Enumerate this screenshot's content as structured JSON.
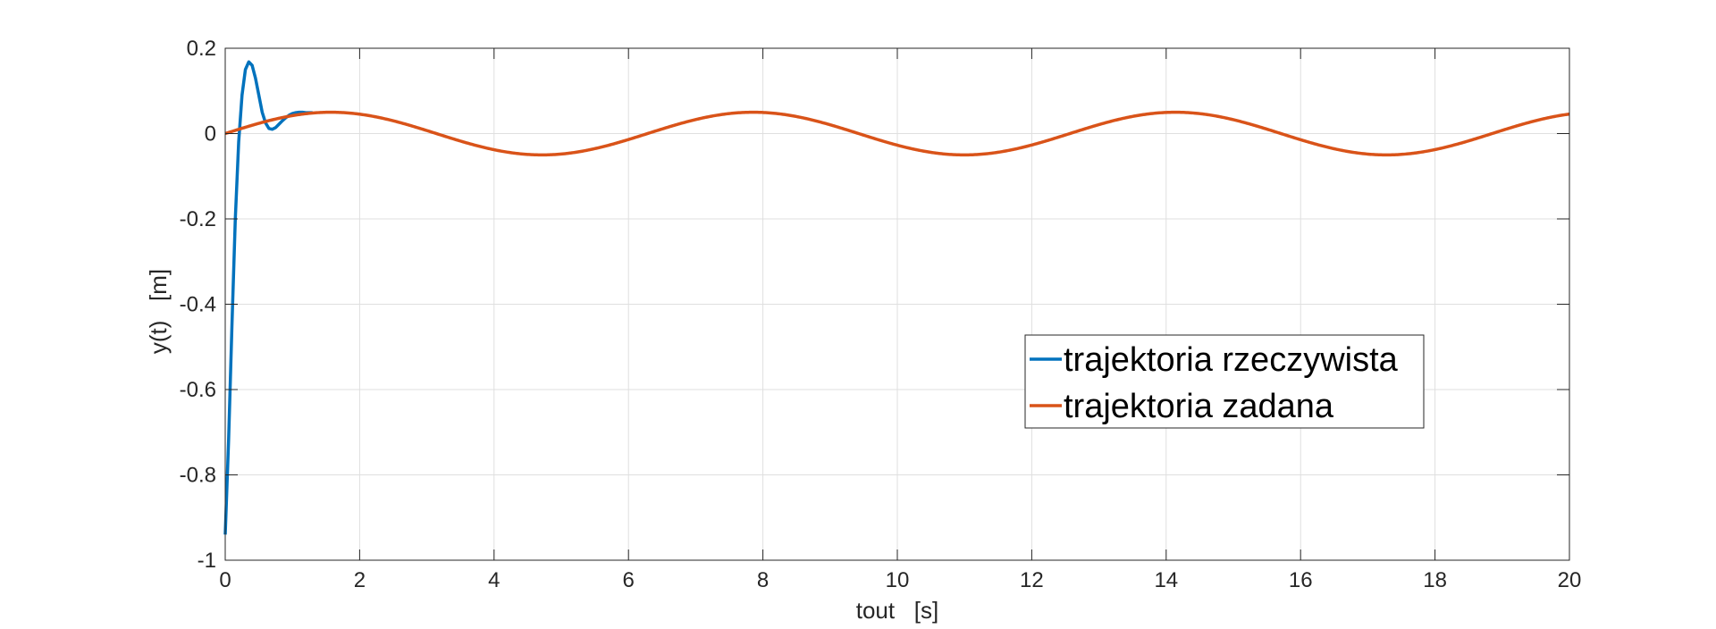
{
  "chart_data": {
    "type": "line",
    "xlabel": "tout   [s]",
    "ylabel": "y(t)   [m]",
    "xlim": [
      0,
      20
    ],
    "ylim": [
      -1,
      0.2
    ],
    "xticks": [
      0,
      2,
      4,
      6,
      8,
      10,
      12,
      14,
      16,
      18,
      20
    ],
    "yticks": [
      -1,
      -0.8,
      -0.6,
      -0.4,
      -0.2,
      0,
      0.2
    ],
    "xtick_labels": [
      "0",
      "2",
      "4",
      "6",
      "8",
      "10",
      "12",
      "14",
      "16",
      "18",
      "20"
    ],
    "ytick_labels": [
      "-1",
      "-0.8",
      "-0.6",
      "-0.4",
      "-0.2",
      "0",
      "0.2"
    ],
    "grid": true,
    "legend_position": "center-right",
    "series": [
      {
        "name": "trajektoria rzeczywista",
        "color": "#0072BD",
        "x": [
          0,
          0.05,
          0.1,
          0.15,
          0.2,
          0.25,
          0.3,
          0.35,
          0.4,
          0.45,
          0.5,
          0.55,
          0.6,
          0.65,
          0.7,
          0.75,
          0.8,
          0.85,
          0.9,
          0.95,
          1.0,
          1.05,
          1.1,
          1.15,
          1.2,
          1.3
        ],
        "values": [
          -0.94,
          -0.72,
          -0.45,
          -0.2,
          -0.02,
          0.09,
          0.15,
          0.168,
          0.16,
          0.13,
          0.09,
          0.05,
          0.025,
          0.012,
          0.01,
          0.014,
          0.022,
          0.03,
          0.037,
          0.043,
          0.047,
          0.049,
          0.05,
          0.05,
          0.049,
          0.049
        ]
      },
      {
        "name": "trajektoria zadana",
        "color": "#D95319",
        "function": "0.05*sin(t)",
        "x_start": 0,
        "x_end": 20,
        "amplitude": 0.05,
        "angular_frequency": 1
      }
    ]
  }
}
